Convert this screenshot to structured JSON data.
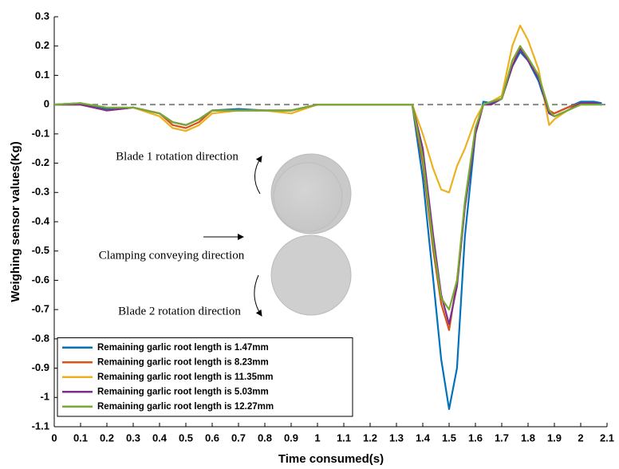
{
  "chart_data": {
    "type": "line",
    "x_label": "Time consumed(s)",
    "y_label": "Weighing sensor values(Kg)",
    "annotations": [
      "Blade 1 rotation direction",
      "Clamping conveying direction",
      "Blade 2 rotation direction"
    ],
    "xlim": [
      0,
      2.1
    ],
    "ylim": [
      -1.1,
      0.3
    ],
    "xticks": [
      0,
      0.1,
      0.2,
      0.3,
      0.4,
      0.5,
      0.6,
      0.7,
      0.8,
      0.9,
      1,
      1.1,
      1.2,
      1.3,
      1.4,
      1.5,
      1.6,
      1.7,
      1.8,
      1.9,
      2,
      2.1
    ],
    "yticks": [
      0.3,
      0.2,
      0.1,
      0,
      -0.1,
      -0.2,
      -0.3,
      -0.4,
      -0.5,
      -0.6,
      -0.7,
      -0.8,
      -0.9,
      -1,
      -1.1
    ],
    "hline": 0,
    "legend": "lower left",
    "x": [
      0,
      0.1,
      0.2,
      0.3,
      0.4,
      0.45,
      0.5,
      0.55,
      0.6,
      0.7,
      0.8,
      0.9,
      1.0,
      1.1,
      1.2,
      1.3,
      1.36,
      1.4,
      1.44,
      1.47,
      1.5,
      1.53,
      1.56,
      1.6,
      1.63,
      1.66,
      1.7,
      1.74,
      1.77,
      1.8,
      1.84,
      1.88,
      1.9,
      1.95,
      2.0,
      2.05,
      2.08
    ],
    "series": [
      {
        "name": "Remaining garlic root length is 1.47mm",
        "color": "#0072BD",
        "values": [
          0,
          0.005,
          -0.015,
          -0.01,
          -0.03,
          -0.06,
          -0.07,
          -0.05,
          -0.02,
          -0.015,
          -0.02,
          -0.02,
          0,
          0,
          0,
          0,
          0,
          -0.25,
          -0.6,
          -0.87,
          -1.04,
          -0.9,
          -0.45,
          -0.1,
          0.01,
          0.005,
          0.02,
          0.13,
          0.18,
          0.15,
          0.08,
          -0.03,
          -0.03,
          -0.01,
          0.01,
          0.01,
          0.005
        ]
      },
      {
        "name": "Remaining garlic root length is 8.23mm",
        "color": "#D95319",
        "values": [
          0,
          0,
          -0.02,
          -0.01,
          -0.03,
          -0.07,
          -0.08,
          -0.06,
          -0.02,
          -0.02,
          -0.02,
          -0.02,
          0,
          0,
          0,
          0,
          0,
          -0.2,
          -0.5,
          -0.68,
          -0.77,
          -0.6,
          -0.35,
          -0.1,
          0,
          0.01,
          0.02,
          0.13,
          0.2,
          0.15,
          0.1,
          -0.02,
          -0.03,
          -0.01,
          0.005,
          0.005,
          0
        ]
      },
      {
        "name": "Remaining garlic root length is 11.35mm",
        "color": "#EDB120",
        "values": [
          0,
          0,
          -0.02,
          -0.01,
          -0.04,
          -0.08,
          -0.09,
          -0.07,
          -0.03,
          -0.02,
          -0.02,
          -0.03,
          0,
          0,
          0,
          0,
          0,
          -0.1,
          -0.22,
          -0.29,
          -0.3,
          -0.21,
          -0.15,
          -0.05,
          0,
          0.01,
          0.03,
          0.2,
          0.27,
          0.22,
          0.12,
          -0.07,
          -0.05,
          -0.02,
          0,
          0,
          0
        ]
      },
      {
        "name": "Remaining garlic root length is 5.03mm",
        "color": "#7E2F8E",
        "values": [
          0,
          0,
          -0.02,
          -0.01,
          -0.03,
          -0.06,
          -0.07,
          -0.05,
          -0.02,
          -0.02,
          -0.02,
          -0.02,
          0,
          0,
          0,
          0,
          0,
          -0.15,
          -0.45,
          -0.65,
          -0.75,
          -0.62,
          -0.35,
          -0.1,
          0,
          0,
          0.02,
          0.13,
          0.19,
          0.15,
          0.09,
          -0.03,
          -0.04,
          -0.02,
          0.005,
          0.005,
          0
        ]
      },
      {
        "name": "Remaining garlic root length is 12.27mm",
        "color": "#77AC30",
        "values": [
          0,
          0.005,
          -0.01,
          -0.01,
          -0.03,
          -0.06,
          -0.07,
          -0.05,
          -0.02,
          -0.02,
          -0.02,
          -0.02,
          0,
          0,
          0,
          0,
          0,
          -0.18,
          -0.48,
          -0.66,
          -0.7,
          -0.6,
          -0.33,
          -0.08,
          0,
          0.01,
          0.02,
          0.15,
          0.2,
          0.16,
          0.1,
          -0.02,
          -0.04,
          -0.02,
          0,
          0,
          0
        ]
      }
    ]
  }
}
